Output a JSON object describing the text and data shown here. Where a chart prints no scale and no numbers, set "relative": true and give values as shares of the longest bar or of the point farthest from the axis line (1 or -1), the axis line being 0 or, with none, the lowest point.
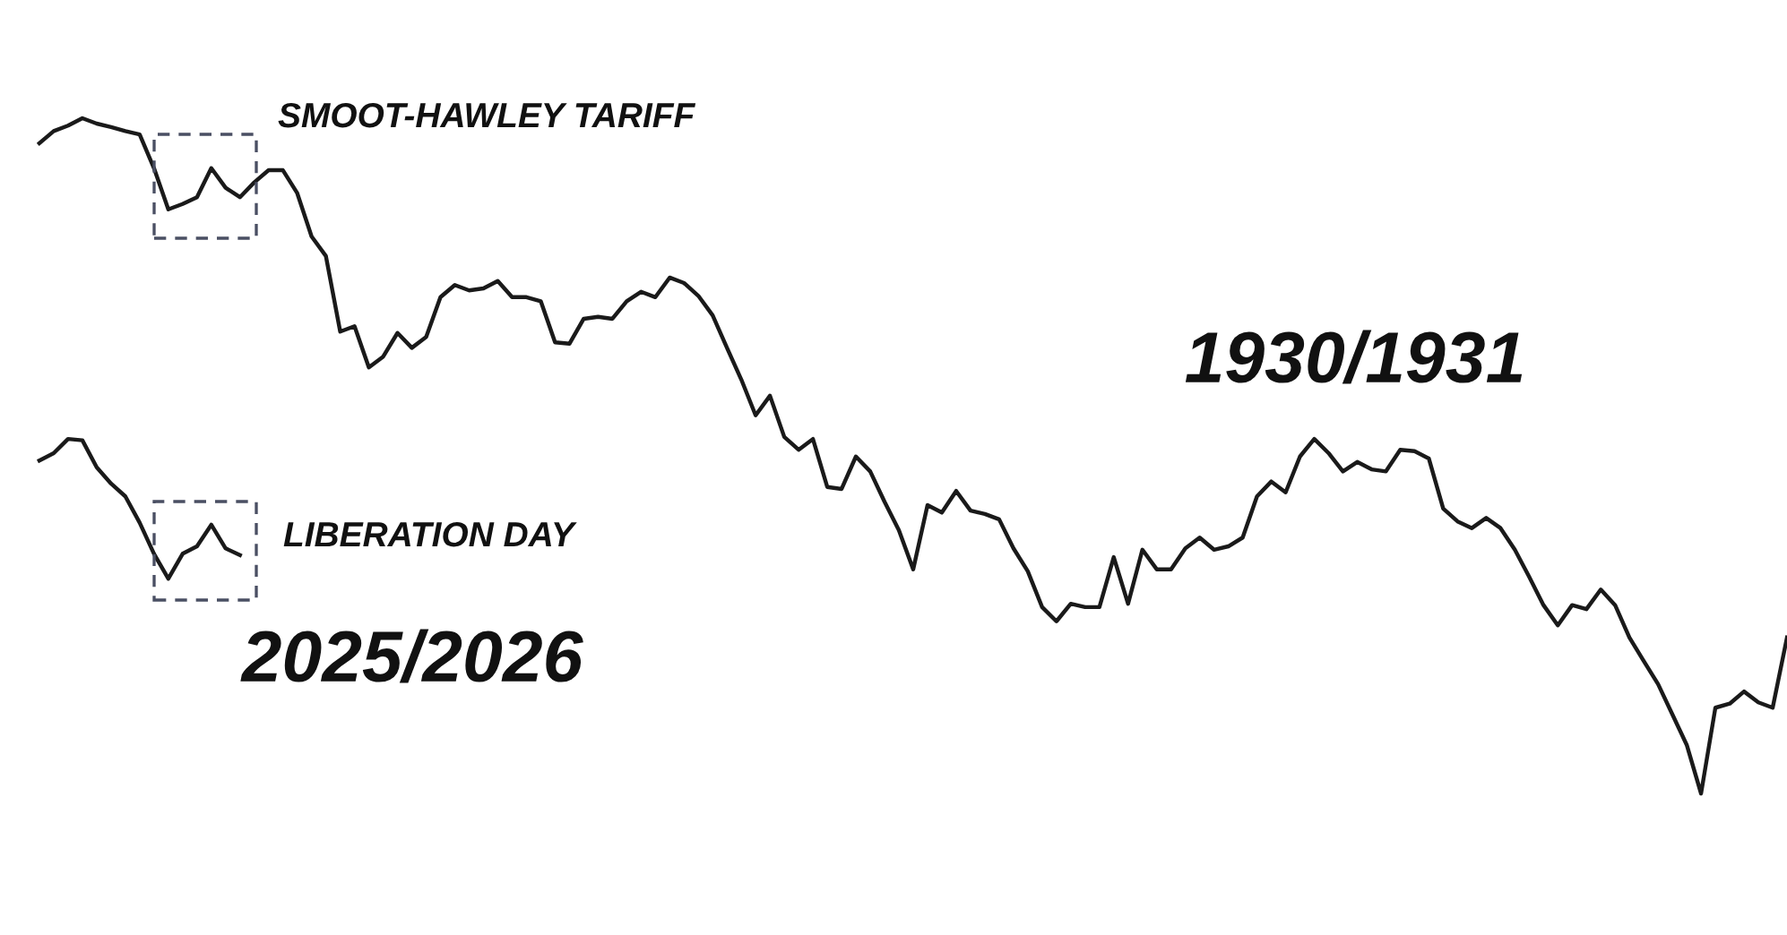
{
  "chart_data": {
    "type": "line",
    "relative": true,
    "legend": false,
    "marker": "none",
    "line_style": "solid",
    "annotations": [
      "SMOOT-HAWLEY TARIFF",
      "LIBERATION DAY"
    ],
    "categories": [
      null,
      null,
      null,
      null,
      null,
      null,
      null,
      null,
      null,
      null,
      null,
      null,
      null,
      null,
      null,
      null,
      null,
      null,
      null,
      null,
      null,
      null,
      null,
      null,
      null,
      null,
      null,
      null,
      null,
      null,
      null,
      null,
      null,
      null,
      null,
      null,
      null,
      null,
      null,
      null,
      null,
      null,
      null,
      null,
      null,
      null,
      null,
      null,
      null,
      null,
      null,
      null,
      null,
      null,
      null,
      null,
      null,
      null,
      null,
      null,
      null,
      null,
      null,
      null,
      null,
      null,
      null,
      null,
      null,
      null,
      null,
      null,
      null,
      null,
      null,
      null,
      null,
      null,
      null,
      null,
      null,
      null,
      null,
      null,
      null,
      null,
      null,
      null,
      null,
      null,
      null,
      null,
      null,
      null,
      null,
      null,
      null,
      null,
      null,
      null,
      null,
      null,
      null,
      null,
      null,
      null,
      null,
      null,
      null,
      null,
      null,
      null,
      null,
      null,
      null,
      null,
      null,
      null,
      null,
      null,
      null,
      null,
      null
    ],
    "series": [
      {
        "name": "1930/1931",
        "color": "#1a1a1a",
        "values": [
          0.963,
          0.981,
          0.989,
          1,
          0.992,
          0.987,
          0.981,
          0.976,
          0.926,
          0.865,
          0.873,
          0.883,
          0.926,
          0.897,
          0.883,
          0.905,
          0.923,
          0.923,
          0.889,
          0.825,
          0.796,
          0.684,
          0.692,
          0.631,
          0.647,
          0.682,
          0.66,
          0.676,
          0.735,
          0.753,
          0.745,
          0.748,
          0.759,
          0.735,
          0.735,
          0.729,
          0.668,
          0.666,
          0.703,
          0.706,
          0.703,
          0.729,
          0.743,
          0.735,
          0.764,
          0.756,
          0.737,
          0.708,
          0.66,
          0.613,
          0.56,
          0.589,
          0.528,
          0.509,
          0.525,
          0.454,
          0.451,
          0.499,
          0.477,
          0.432,
          0.39,
          0.332,
          0.427,
          0.416,
          0.448,
          0.419,
          0.414,
          0.406,
          0.363,
          0.329,
          0.276,
          0.255,
          0.281,
          0.276,
          0.276,
          0.35,
          0.281,
          0.361,
          0.332,
          0.332,
          0.363,
          0.379,
          0.361,
          0.366,
          0.379,
          0.44,
          0.462,
          0.446,
          0.499,
          0.525,
          0.504,
          0.477,
          0.491,
          0.48,
          0.477,
          0.509,
          0.507,
          0.496,
          0.422,
          0.403,
          0.393,
          0.408,
          0.393,
          0.361,
          0.321,
          0.279,
          0.249,
          0.279,
          0.273,
          0.302,
          0.279,
          0.231,
          0.196,
          0.162,
          0.117,
          0.072,
          0,
          0.127,
          0.133,
          0.151,
          0.135,
          0.127,
          0.231
        ]
      },
      {
        "name": "2025/2026",
        "color": "#1a1a1a",
        "values": [
          0.493,
          0.504,
          0.525,
          0.523,
          0.483,
          0.459,
          0.44,
          0.401,
          0.355,
          0.318,
          0.355,
          0.366,
          0.398,
          0.363,
          0.353,
          null,
          null,
          null,
          null,
          null,
          null,
          null,
          null,
          null,
          null,
          null,
          null,
          null,
          null,
          null,
          null,
          null,
          null,
          null,
          null,
          null,
          null,
          null,
          null,
          null,
          null,
          null,
          null,
          null,
          null,
          null,
          null,
          null,
          null,
          null,
          null,
          null,
          null,
          null,
          null,
          null,
          null,
          null,
          null,
          null,
          null,
          null,
          null,
          null,
          null,
          null,
          null,
          null,
          null,
          null,
          null,
          null,
          null,
          null,
          null,
          null,
          null,
          null,
          null,
          null,
          null,
          null,
          null,
          null,
          null,
          null,
          null,
          null,
          null,
          null,
          null,
          null,
          null,
          null,
          null,
          null,
          null,
          null,
          null,
          null,
          null,
          null,
          null,
          null,
          null,
          null,
          null,
          null,
          null,
          null,
          null,
          null,
          null,
          null,
          null,
          null,
          null,
          null,
          null,
          null,
          null,
          null,
          null
        ]
      }
    ]
  }
}
